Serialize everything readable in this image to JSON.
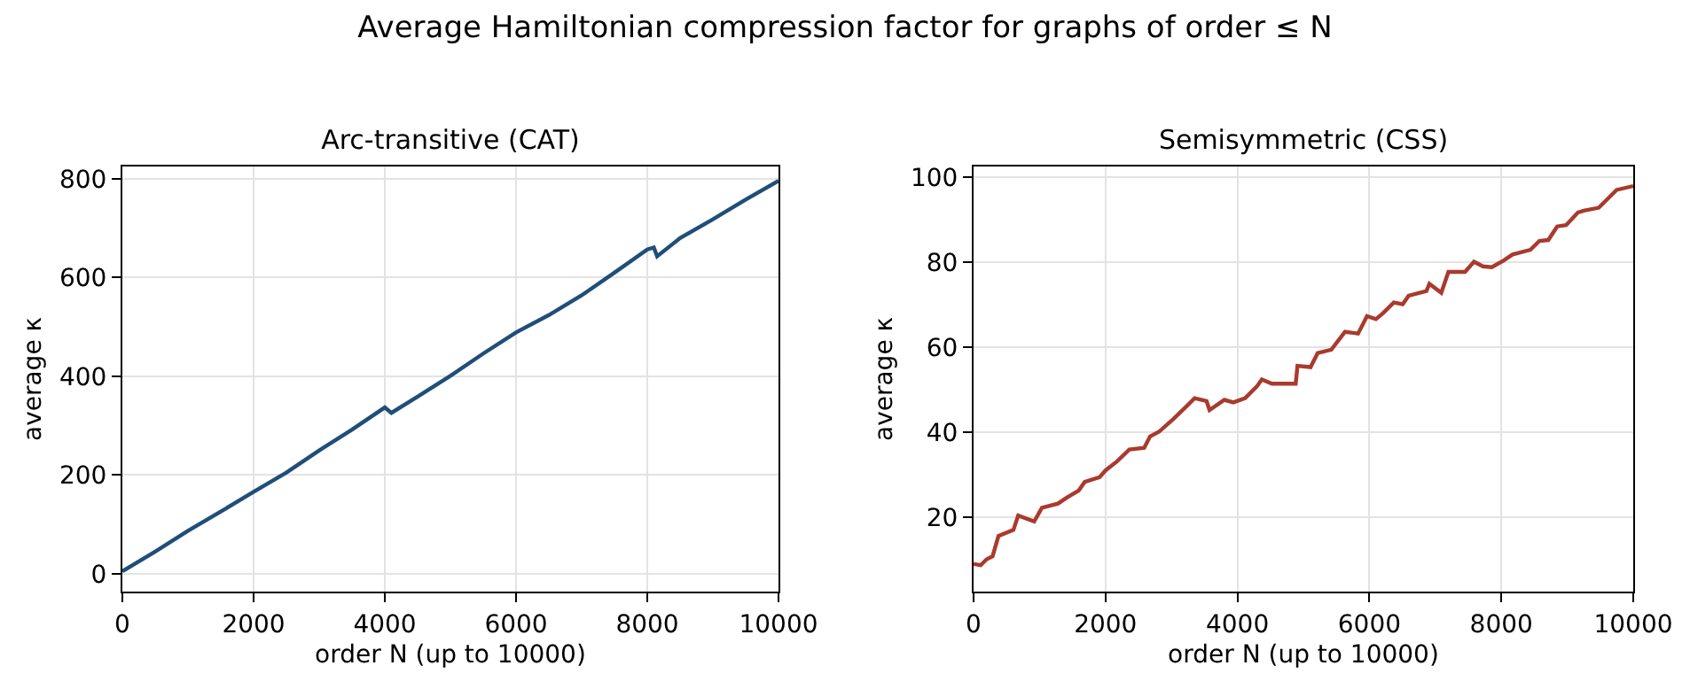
{
  "chart_data": [
    {
      "type": "line",
      "title": "Arc-transitive (CAT)",
      "xlabel": "order N (up to 10000)",
      "ylabel": "average κ",
      "annotations": [
        "Average Hamiltonian compression factor for graphs of order ≤ N"
      ],
      "x": [
        0,
        500,
        1000,
        1500,
        2000,
        2500,
        3000,
        3500,
        4000,
        4100,
        4500,
        5000,
        5500,
        6000,
        6500,
        7000,
        7500,
        8000,
        8100,
        8150,
        8500,
        9000,
        9500,
        10000
      ],
      "series": [
        {
          "color": "#1f4e79",
          "values": [
            5,
            45,
            87,
            126,
            166,
            205,
            250,
            292,
            337,
            326,
            359,
            401,
            446,
            489,
            524,
            564,
            610,
            657,
            661,
            643,
            680,
            718,
            758,
            796
          ]
        }
      ],
      "xlim": [
        0,
        10000
      ],
      "ylim": [
        -36,
        825
      ],
      "xticks": [
        0,
        2000,
        4000,
        6000,
        8000,
        10000
      ],
      "yticks": [
        0,
        200,
        400,
        600,
        800
      ],
      "grid": true,
      "line_style": "solid",
      "marker": "none"
    },
    {
      "type": "line",
      "title": "Semisymmetric (CSS)",
      "xlabel": "order N (up to 10000)",
      "ylabel": "average κ",
      "x": [
        0,
        108,
        198,
        288,
        378,
        604,
        676,
        919,
        1036,
        1279,
        1414,
        1595,
        1685,
        1910,
        2000,
        2180,
        2360,
        2586,
        2676,
        2811,
        3036,
        3216,
        3351,
        3532,
        3577,
        3802,
        3937,
        4117,
        4297,
        4369,
        4523,
        4883,
        4910,
        5108,
        5216,
        5423,
        5631,
        5829,
        5964,
        6099,
        6207,
        6369,
        6505,
        6595,
        6865,
        6910,
        7090,
        7198,
        7450,
        7586,
        7721,
        7856,
        8036,
        8171,
        8441,
        8577,
        8712,
        8847,
        8982,
        9162,
        9252,
        9477,
        9613,
        9748,
        10000
      ],
      "series": [
        {
          "color": "#a93a2e",
          "values": [
            9.0,
            8.7,
            10.1,
            10.8,
            15.6,
            17.0,
            20.4,
            19.0,
            22.2,
            23.2,
            24.6,
            26.3,
            28.3,
            29.4,
            31.0,
            33.2,
            35.9,
            36.3,
            39.0,
            40.1,
            43.2,
            45.9,
            48.0,
            47.3,
            45.2,
            47.6,
            47.0,
            48.0,
            50.8,
            52.4,
            51.4,
            51.4,
            55.6,
            55.3,
            58.6,
            59.4,
            63.6,
            63.2,
            67.3,
            66.6,
            68.0,
            70.5,
            70.1,
            72.1,
            73.2,
            74.9,
            72.8,
            77.7,
            77.7,
            80.1,
            79.0,
            78.8,
            80.4,
            81.8,
            82.9,
            85.0,
            85.2,
            88.4,
            88.7,
            91.7,
            92.1,
            92.8,
            94.9,
            97.0,
            97.9
          ]
        }
      ],
      "xlim": [
        0,
        10000
      ],
      "ylim": [
        2.5,
        102.5
      ],
      "xticks": [
        0,
        2000,
        4000,
        6000,
        8000,
        10000
      ],
      "yticks": [
        20,
        40,
        60,
        80,
        100
      ],
      "grid": true,
      "line_style": "solid",
      "marker": "none"
    }
  ]
}
